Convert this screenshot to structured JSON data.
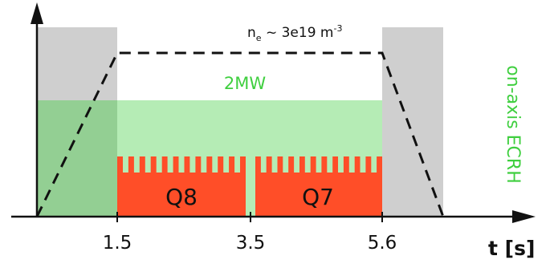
{
  "colors": {
    "gray_phase": "#cfcfcf",
    "ecrh_green": "#b5ecb5",
    "ecrh_overlap": "#93cf93",
    "ecrh_text": "#3fcf3f",
    "block_red": "#ff4e28",
    "dash": "#111111",
    "axis": "#111111"
  },
  "time_axis": {
    "title": "t [s]",
    "ticks": [
      {
        "value": 1.5,
        "label": "1.5"
      },
      {
        "value": 3.5,
        "label": "3.5"
      },
      {
        "value": 5.6,
        "label": "5.6"
      }
    ]
  },
  "phases": {
    "rampup_end": 1.5,
    "flattop_end": 5.6
  },
  "density": {
    "label_main": "n",
    "label_sub": "e",
    "label_rest": " ~ 3e19 m",
    "label_sup": "-3"
  },
  "ecrh": {
    "power_label": "2MW",
    "side_label": "on-axis ECRH"
  },
  "blocks": [
    {
      "label": "Q8",
      "start": 1.5,
      "end": 3.5
    },
    {
      "label": "Q7",
      "start": 3.5,
      "end": 5.6
    }
  ]
}
